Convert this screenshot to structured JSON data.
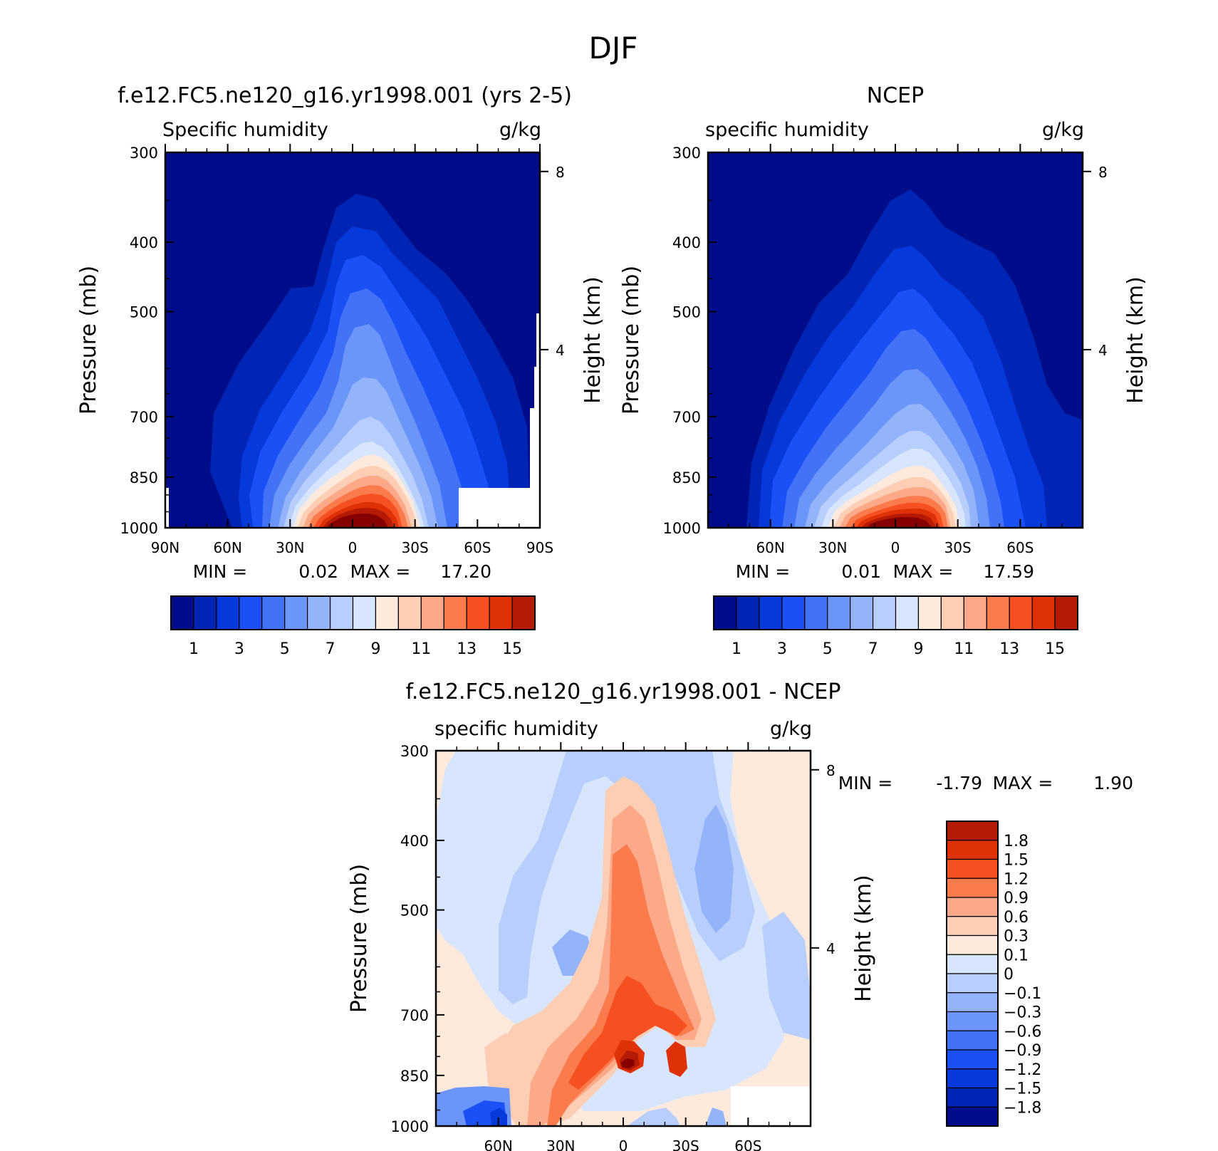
{
  "figure_title": "DJF",
  "chart_data": [
    {
      "type": "heatmap",
      "title": "f.e12.FC5.ne120_g16.yr1998.001 (yrs 2-5)",
      "left_subtitle": "Specific humidity",
      "right_subtitle": "g/kg",
      "ylabel": "Pressure (mb)",
      "ylabel_right": "Height (km)",
      "x_ticks": [
        "90N",
        "60N",
        "30N",
        "0",
        "30S",
        "60S",
        "90S"
      ],
      "y_ticks": [
        "300",
        "400",
        "500",
        "700",
        "850",
        "1000"
      ],
      "height_ticks": [
        "8",
        "4"
      ],
      "ylim": [
        1000,
        300
      ],
      "min_label": "MIN =",
      "min_value": "0.02",
      "max_label": "MAX =",
      "max_value": "17.20",
      "colorbar_labels": [
        "1",
        "3",
        "5",
        "7",
        "9",
        "11",
        "13",
        "15"
      ],
      "contour_levels": [
        1,
        2,
        3,
        4,
        5,
        6,
        7,
        8,
        9,
        10,
        11,
        12,
        13,
        14,
        15
      ],
      "grid": false
    },
    {
      "type": "heatmap",
      "title": "NCEP",
      "left_subtitle": "specific humidity",
      "right_subtitle": "g/kg",
      "ylabel": "Pressure (mb)",
      "ylabel_right": "Height (km)",
      "x_ticks": [
        "60N",
        "30N",
        "0",
        "30S",
        "60S"
      ],
      "y_ticks": [
        "300",
        "400",
        "500",
        "700",
        "850",
        "1000"
      ],
      "height_ticks": [
        "8",
        "4"
      ],
      "ylim": [
        1000,
        300
      ],
      "min_label": "MIN =",
      "min_value": "0.01",
      "max_label": "MAX =",
      "max_value": "17.59",
      "colorbar_labels": [
        "1",
        "3",
        "5",
        "7",
        "9",
        "11",
        "13",
        "15"
      ],
      "contour_levels": [
        1,
        2,
        3,
        4,
        5,
        6,
        7,
        8,
        9,
        10,
        11,
        12,
        13,
        14,
        15
      ],
      "grid": false
    },
    {
      "type": "heatmap",
      "title": "f.e12.FC5.ne120_g16.yr1998.001 - NCEP",
      "left_subtitle": "specific humidity",
      "right_subtitle": "g/kg",
      "ylabel": "Pressure (mb)",
      "ylabel_right": "Height (km)",
      "x_ticks": [
        "60N",
        "30N",
        "0",
        "30S",
        "60S"
      ],
      "y_ticks": [
        "300",
        "400",
        "500",
        "700",
        "850",
        "1000"
      ],
      "height_ticks": [
        "8",
        "4"
      ],
      "ylim": [
        1000,
        300
      ],
      "min_label": "MIN =",
      "min_value": "-1.79",
      "max_label": "MAX =",
      "max_value": "1.90",
      "colorbar_labels": [
        "1.8",
        "1.5",
        "1.2",
        "0.9",
        "0.6",
        "0.3",
        "0.1",
        "0",
        "-0.1",
        "-0.3",
        "-0.6",
        "-0.9",
        "-1.2",
        "-1.5",
        "-1.8"
      ],
      "contour_levels": [
        -1.8,
        -1.5,
        -1.2,
        -0.9,
        -0.6,
        -0.3,
        -0.1,
        0,
        0.1,
        0.3,
        0.6,
        0.9,
        1.2,
        1.5,
        1.8
      ],
      "grid": false
    }
  ],
  "colors": {
    "sequential": [
      "#000c8a",
      "#0025b5",
      "#0639db",
      "#1a50f5",
      "#4273f7",
      "#6c95f9",
      "#93b4fa",
      "#b8cefc",
      "#d7e6fd",
      "#feeadc",
      "#fdcdb4",
      "#fca98a",
      "#fb7b4d",
      "#f64f22",
      "#df3107",
      "#b51a04",
      "#870000"
    ],
    "diverging": [
      "#000c8a",
      "#0025b5",
      "#0639db",
      "#1a50f5",
      "#4273f7",
      "#6c95f9",
      "#93b4fa",
      "#b8cefc",
      "#d7e6fd",
      "#feeadc",
      "#fdcdb4",
      "#fca98a",
      "#fb7b4d",
      "#f64f22",
      "#df3107",
      "#b51a04",
      "#870000"
    ]
  }
}
